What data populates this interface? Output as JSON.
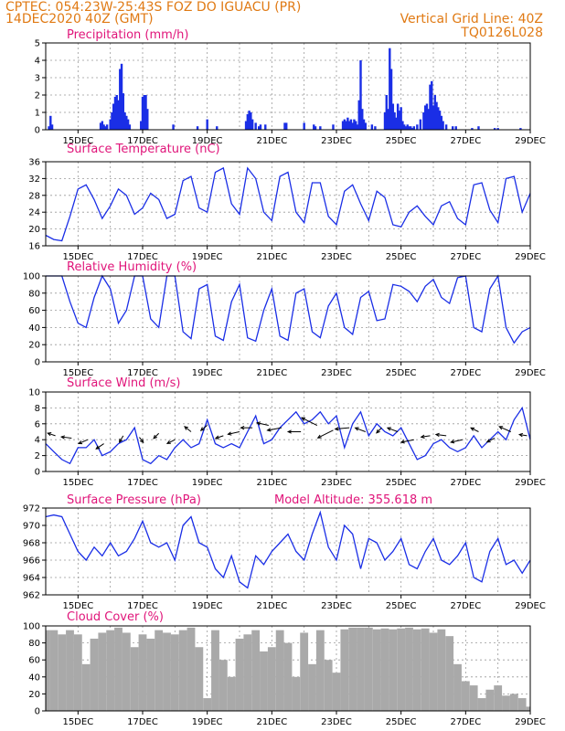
{
  "header": {
    "line1": "CPTEC:  054:23W-25:43S  FOZ DO IGUACU (PR)",
    "line2_left": "14DEC2020 40Z (GMT)",
    "line2_right": "Vertical Grid Line: 40Z",
    "line3_right": "TQ0126L028"
  },
  "colors": {
    "header": "#e07a14",
    "title": "#e0157a",
    "series": "#1a2ee6",
    "bars": "#1a2ee6",
    "cloud": "#a9a9a9"
  },
  "chart_data": [
    {
      "type": "bar",
      "title": "Precipitation (mm/h)",
      "ylim": [
        0,
        5
      ],
      "yticks": [
        "0",
        "1",
        "2",
        "3",
        "4",
        "5"
      ],
      "xticks": [
        "15DEC",
        "17DEC",
        "19DEC",
        "21DEC",
        "23DEC",
        "25DEC",
        "27DEC",
        "29DEC"
      ],
      "x": [
        14.1,
        14.15,
        14.2,
        15.7,
        15.75,
        15.8,
        15.85,
        15.9,
        16.0,
        16.05,
        16.1,
        16.15,
        16.2,
        16.25,
        16.3,
        16.35,
        16.4,
        16.45,
        16.5,
        16.55,
        16.6,
        16.95,
        17.0,
        17.05,
        17.1,
        17.15,
        17.95,
        18.7,
        19.0,
        19.3,
        20.2,
        20.25,
        20.3,
        20.35,
        20.4,
        20.5,
        20.6,
        20.65,
        20.8,
        21.4,
        21.45,
        22.0,
        22.3,
        22.35,
        22.5,
        22.9,
        23.2,
        23.25,
        23.3,
        23.35,
        23.4,
        23.45,
        23.5,
        23.55,
        23.6,
        23.65,
        23.7,
        23.75,
        23.8,
        23.85,
        23.9,
        24.1,
        24.2,
        24.5,
        24.55,
        24.6,
        24.65,
        24.7,
        24.75,
        24.8,
        24.85,
        24.9,
        24.95,
        25.0,
        25.05,
        25.1,
        25.15,
        25.2,
        25.25,
        25.3,
        25.35,
        25.4,
        25.5,
        25.6,
        25.7,
        25.75,
        25.8,
        25.85,
        25.9,
        25.95,
        26.0,
        26.05,
        26.1,
        26.15,
        26.2,
        26.25,
        26.3,
        26.4,
        26.6,
        26.7,
        27.2,
        27.4,
        27.9,
        28.0,
        28.7
      ],
      "values": [
        0.2,
        0.8,
        0.3,
        0.4,
        0.5,
        0.3,
        0.2,
        0.3,
        0.6,
        1.0,
        1.5,
        1.9,
        2.0,
        1.7,
        3.5,
        3.8,
        2.1,
        1.0,
        0.8,
        0.6,
        0.3,
        0.5,
        1.9,
        2.0,
        2.0,
        1.2,
        0.3,
        0.2,
        0.6,
        0.2,
        0.5,
        0.9,
        1.1,
        1.0,
        0.6,
        0.4,
        0.2,
        0.3,
        0.3,
        0.4,
        0.4,
        0.4,
        0.3,
        0.2,
        0.2,
        0.3,
        0.5,
        0.6,
        0.5,
        0.7,
        0.5,
        0.6,
        0.4,
        0.6,
        0.5,
        0.3,
        1.7,
        4.0,
        1.2,
        0.6,
        0.4,
        0.3,
        0.2,
        1.0,
        2.0,
        1.2,
        4.7,
        3.5,
        1.5,
        1.0,
        0.7,
        1.5,
        1.1,
        1.3,
        0.5,
        0.3,
        0.2,
        0.3,
        0.2,
        0.2,
        0.1,
        0.2,
        0.3,
        0.6,
        1.0,
        1.4,
        1.5,
        1.2,
        2.6,
        2.8,
        1.4,
        2.0,
        1.6,
        1.3,
        1.1,
        0.8,
        0.5,
        0.3,
        0.2,
        0.2,
        0.1,
        0.2,
        0.1,
        0.1,
        0.1
      ]
    },
    {
      "type": "line",
      "title": "Surface Temperature (nC)",
      "ylim": [
        16,
        36
      ],
      "yticks": [
        "16",
        "20",
        "24",
        "28",
        "32",
        "36"
      ],
      "xticks": [
        "15DEC",
        "17DEC",
        "19DEC",
        "21DEC",
        "23DEC",
        "25DEC",
        "27DEC",
        "29DEC"
      ],
      "x": [
        14.0,
        14.25,
        14.5,
        14.75,
        15.0,
        15.25,
        15.5,
        15.75,
        16.0,
        16.25,
        16.5,
        16.75,
        17.0,
        17.25,
        17.5,
        17.75,
        18.0,
        18.25,
        18.5,
        18.75,
        19.0,
        19.25,
        19.5,
        19.75,
        20.0,
        20.25,
        20.5,
        20.75,
        21.0,
        21.25,
        21.5,
        21.75,
        22.0,
        22.25,
        22.5,
        22.75,
        23.0,
        23.25,
        23.5,
        23.75,
        24.0,
        24.25,
        24.5,
        24.75,
        25.0,
        25.25,
        25.5,
        25.75,
        26.0,
        26.25,
        26.5,
        26.75,
        27.0,
        27.25,
        27.5,
        27.75,
        28.0,
        28.25,
        28.5,
        28.75,
        29.0
      ],
      "values": [
        18.5,
        17.5,
        17.2,
        23.0,
        29.5,
        30.5,
        27.0,
        22.5,
        25.5,
        29.5,
        28.0,
        23.5,
        25.0,
        28.5,
        27.0,
        22.5,
        23.5,
        31.5,
        32.5,
        25.0,
        24.0,
        33.5,
        34.5,
        26.0,
        23.5,
        34.5,
        32.0,
        24.0,
        22.0,
        32.5,
        33.5,
        24.0,
        21.5,
        31.0,
        31.0,
        23.0,
        21.0,
        29.0,
        30.5,
        26.0,
        22.0,
        29.0,
        27.5,
        21.0,
        20.5,
        24.0,
        25.5,
        23.0,
        21.0,
        25.5,
        26.5,
        22.5,
        21.0,
        30.5,
        31.0,
        24.5,
        21.5,
        32.0,
        32.5,
        24.0,
        28.5
      ]
    },
    {
      "type": "line",
      "title": "Relative Humidity (%)",
      "ylim": [
        0,
        100
      ],
      "yticks": [
        "0",
        "20",
        "40",
        "60",
        "80",
        "100"
      ],
      "xticks": [
        "15DEC",
        "17DEC",
        "19DEC",
        "21DEC",
        "23DEC",
        "25DEC",
        "27DEC",
        "29DEC"
      ],
      "x": [
        14.0,
        14.25,
        14.5,
        14.75,
        15.0,
        15.25,
        15.5,
        15.75,
        16.0,
        16.25,
        16.5,
        16.75,
        17.0,
        17.25,
        17.5,
        17.75,
        18.0,
        18.25,
        18.5,
        18.75,
        19.0,
        19.25,
        19.5,
        19.75,
        20.0,
        20.25,
        20.5,
        20.75,
        21.0,
        21.25,
        21.5,
        21.75,
        22.0,
        22.25,
        22.5,
        22.75,
        23.0,
        23.25,
        23.5,
        23.75,
        24.0,
        24.25,
        24.5,
        24.75,
        25.0,
        25.25,
        25.5,
        25.75,
        26.0,
        26.25,
        26.5,
        26.75,
        27.0,
        27.25,
        27.5,
        27.75,
        28.0,
        28.25,
        28.5,
        28.75,
        29.0
      ],
      "values": [
        100,
        100,
        100,
        70,
        45,
        40,
        75,
        100,
        85,
        45,
        60,
        100,
        100,
        50,
        40,
        100,
        100,
        35,
        27,
        85,
        90,
        30,
        25,
        70,
        90,
        28,
        24,
        60,
        85,
        30,
        25,
        80,
        85,
        35,
        28,
        65,
        80,
        40,
        32,
        75,
        82,
        48,
        50,
        90,
        88,
        82,
        70,
        88,
        96,
        75,
        68,
        98,
        100,
        40,
        35,
        85,
        100,
        40,
        22,
        35,
        40
      ]
    },
    {
      "type": "line",
      "title": "Surface Wind (m/s)",
      "ylim": [
        0,
        10
      ],
      "yticks": [
        "0",
        "2",
        "4",
        "6",
        "8",
        "10"
      ],
      "xticks": [
        "15DEC",
        "17DEC",
        "19DEC",
        "21DEC",
        "23DEC",
        "25DEC",
        "27DEC",
        "29DEC"
      ],
      "x": [
        14.0,
        14.25,
        14.5,
        14.75,
        15.0,
        15.25,
        15.5,
        15.75,
        16.0,
        16.25,
        16.5,
        16.75,
        17.0,
        17.25,
        17.5,
        17.75,
        18.0,
        18.25,
        18.5,
        18.75,
        19.0,
        19.25,
        19.5,
        19.75,
        20.0,
        20.25,
        20.5,
        20.75,
        21.0,
        21.25,
        21.5,
        21.75,
        22.0,
        22.25,
        22.5,
        22.75,
        23.0,
        23.25,
        23.5,
        23.75,
        24.0,
        24.25,
        24.5,
        24.75,
        25.0,
        25.25,
        25.5,
        25.75,
        26.0,
        26.25,
        26.5,
        26.75,
        27.0,
        27.25,
        27.5,
        27.75,
        28.0,
        28.25,
        28.5,
        28.75,
        29.0
      ],
      "values": [
        3.5,
        2.5,
        1.5,
        1.0,
        3.0,
        3.0,
        4.0,
        2.0,
        2.5,
        3.5,
        4.0,
        5.5,
        1.5,
        1.0,
        2.0,
        1.5,
        3.0,
        4.0,
        3.0,
        3.5,
        6.5,
        3.5,
        3.0,
        3.5,
        3.0,
        5.0,
        7.0,
        3.5,
        4.0,
        5.5,
        6.5,
        7.5,
        6.0,
        6.5,
        7.5,
        6.0,
        7.0,
        3.0,
        6.0,
        7.5,
        4.5,
        6.0,
        5.0,
        4.5,
        5.5,
        3.5,
        1.5,
        2.0,
        3.5,
        4.0,
        3.0,
        2.5,
        3.0,
        4.5,
        3.0,
        4.0,
        5.0,
        4.0,
        6.5,
        8.0,
        4.0
      ],
      "arrows": {
        "x": [
          14.3,
          14.8,
          15.3,
          15.8,
          16.4,
          16.9,
          17.5,
          18.0,
          18.5,
          19.0,
          19.5,
          20.0,
          20.4,
          20.9,
          21.3,
          21.9,
          22.4,
          22.9,
          23.4,
          23.9,
          24.4,
          24.9,
          25.4,
          25.9,
          26.4,
          26.9,
          27.4,
          27.9,
          28.4,
          28.9
        ],
        "y": [
          4.5,
          4.2,
          4.0,
          3.5,
          4.5,
          4.3,
          4.8,
          4.0,
          5.0,
          5.8,
          4.5,
          5.0,
          5.5,
          5.8,
          5.5,
          5.0,
          5.8,
          5.2,
          5.5,
          5.0,
          5.5,
          5.0,
          4.0,
          4.5,
          4.5,
          4.0,
          5.0,
          4.2,
          5.0,
          4.5
        ],
        "u": [
          -0.6,
          -0.8,
          -0.7,
          -0.6,
          -0.3,
          0.3,
          -0.4,
          -0.6,
          -0.5,
          -0.5,
          -0.6,
          -0.9,
          -0.9,
          -0.9,
          -1.1,
          -1.0,
          -1.2,
          -1.2,
          -1.1,
          -0.8,
          -0.4,
          -0.8,
          -1.0,
          -0.7,
          -0.8,
          -0.9,
          -0.6,
          -0.6,
          -0.9,
          -0.6
        ],
        "v": [
          0.2,
          0.1,
          -0.3,
          -0.4,
          -0.5,
          -0.4,
          -0.4,
          -0.3,
          0.4,
          -0.4,
          -0.2,
          -0.2,
          0.0,
          0.2,
          -0.2,
          0.0,
          0.6,
          -0.6,
          -0.1,
          0.3,
          -0.4,
          0.3,
          -0.2,
          -0.1,
          0.1,
          -0.2,
          0.3,
          -0.3,
          0.4,
          0.1
        ]
      }
    },
    {
      "type": "line",
      "title": "Surface Pressure (hPa)",
      "annotation": "Model Altitude: 355.618 m",
      "ylim": [
        962,
        972
      ],
      "yticks": [
        "962",
        "964",
        "966",
        "968",
        "970",
        "972"
      ],
      "xticks": [
        "15DEC",
        "17DEC",
        "19DEC",
        "21DEC",
        "23DEC",
        "25DEC",
        "27DEC",
        "29DEC"
      ],
      "x": [
        14.0,
        14.25,
        14.5,
        14.75,
        15.0,
        15.25,
        15.5,
        15.75,
        16.0,
        16.25,
        16.5,
        16.75,
        17.0,
        17.25,
        17.5,
        17.75,
        18.0,
        18.25,
        18.5,
        18.75,
        19.0,
        19.25,
        19.5,
        19.75,
        20.0,
        20.25,
        20.5,
        20.75,
        21.0,
        21.25,
        21.5,
        21.75,
        22.0,
        22.25,
        22.5,
        22.75,
        23.0,
        23.25,
        23.5,
        23.75,
        24.0,
        24.25,
        24.5,
        24.75,
        25.0,
        25.25,
        25.5,
        25.75,
        26.0,
        26.25,
        26.5,
        26.75,
        27.0,
        27.25,
        27.5,
        27.75,
        28.0,
        28.25,
        28.5,
        28.75,
        29.0
      ],
      "values": [
        971.0,
        971.2,
        971.0,
        969.0,
        967.0,
        966.0,
        967.5,
        966.5,
        968.0,
        966.5,
        967.0,
        968.5,
        970.5,
        968.0,
        967.5,
        968.0,
        966.0,
        970.0,
        971.0,
        968.0,
        967.5,
        965.0,
        964.0,
        966.5,
        963.5,
        962.8,
        966.5,
        965.5,
        967.0,
        968.0,
        969.0,
        967.0,
        966.0,
        969.0,
        971.5,
        967.5,
        966.0,
        970.0,
        969.0,
        965.0,
        968.5,
        968.0,
        966.0,
        967.0,
        968.5,
        965.5,
        965.0,
        967.0,
        968.5,
        966.0,
        965.5,
        966.5,
        968.0,
        964.0,
        963.5,
        967.0,
        968.5,
        965.5,
        966.0,
        964.5,
        966.0
      ]
    },
    {
      "type": "bar",
      "title": "Cloud Cover (%)",
      "ylim": [
        0,
        100
      ],
      "yticks": [
        "0",
        "20",
        "40",
        "60",
        "80",
        "100"
      ],
      "xticks": [
        "15DEC",
        "17DEC",
        "19DEC",
        "21DEC",
        "23DEC",
        "25DEC",
        "27DEC",
        "29DEC"
      ],
      "x": [
        14.0,
        14.25,
        14.5,
        14.75,
        15.0,
        15.25,
        15.5,
        15.75,
        16.0,
        16.25,
        16.5,
        16.75,
        17.0,
        17.25,
        17.5,
        17.75,
        18.0,
        18.25,
        18.5,
        18.75,
        19.0,
        19.25,
        19.5,
        19.75,
        20.0,
        20.25,
        20.5,
        20.75,
        21.0,
        21.25,
        21.5,
        21.75,
        22.0,
        22.25,
        22.5,
        22.75,
        23.0,
        23.25,
        23.5,
        23.75,
        24.0,
        24.25,
        24.5,
        24.75,
        25.0,
        25.25,
        25.5,
        25.75,
        26.0,
        26.25,
        26.5,
        26.75,
        27.0,
        27.25,
        27.5,
        27.75,
        28.0,
        28.25,
        28.5,
        28.75,
        29.0
      ],
      "values": [
        95,
        95,
        90,
        95,
        90,
        55,
        85,
        92,
        95,
        98,
        92,
        75,
        90,
        85,
        95,
        92,
        90,
        95,
        98,
        75,
        15,
        95,
        60,
        40,
        85,
        90,
        95,
        70,
        75,
        95,
        80,
        40,
        92,
        55,
        95,
        60,
        45,
        96,
        98,
        98,
        98,
        96,
        97,
        96,
        97,
        98,
        96,
        97,
        92,
        96,
        88,
        55,
        35,
        30,
        15,
        25,
        30,
        18,
        20,
        15,
        5
      ]
    }
  ]
}
